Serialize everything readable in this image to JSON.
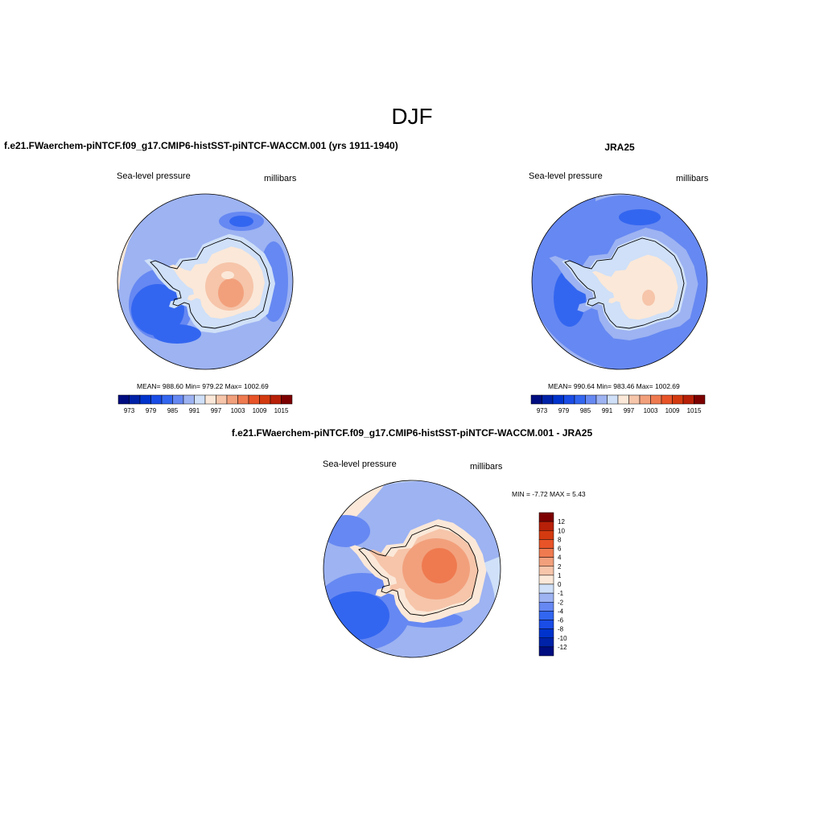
{
  "figure": {
    "title": "DJF",
    "panel_left_title": "f.e21.FWaerchem-piNTCF.f09_g17.CMIP6-histSST-piNTCF-WACCM.001 (yrs 1911-1940)",
    "panel_right_title": "JRA25",
    "panel_bottom_title": "f.e21.FWaerchem-piNTCF.f09_g17.CMIP6-histSST-piNTCF-WACCM.001 - JRA25"
  },
  "panels": [
    {
      "id": "model",
      "variable_label": "Sea-level pressure",
      "units_label": "millibars",
      "stats_text": "MEAN= 988.60  Min= 979.22  Max= 1002.69",
      "mean": 988.6,
      "min": 979.22,
      "max": 1002.69
    },
    {
      "id": "obs",
      "variable_label": "Sea-level pressure",
      "units_label": "millibars",
      "stats_text": "MEAN= 990.64  Min= 983.46  Max= 1002.69",
      "mean": 990.64,
      "min": 983.46,
      "max": 1002.69
    },
    {
      "id": "diff",
      "variable_label": "Sea-level pressure",
      "units_label": "millibars",
      "stats_text": "MIN =  -7.72 MAX =   5.43",
      "min": -7.72,
      "max": 5.43
    }
  ],
  "colorbars": {
    "field": {
      "orientation": "horizontal",
      "tick_labels": [
        "973",
        "979",
        "985",
        "991",
        "997",
        "1003",
        "1009",
        "1015"
      ],
      "colors": [
        "#000d80",
        "#0022a8",
        "#0033cc",
        "#1a4ce6",
        "#3366f0",
        "#6688f2",
        "#9db3f2",
        "#cfe0f8",
        "#fbe8d8",
        "#f6c5aa",
        "#f2a07c",
        "#ef7a50",
        "#e85428",
        "#d43a10",
        "#b82008",
        "#7d0000"
      ]
    },
    "diff": {
      "orientation": "vertical",
      "tick_labels": [
        "12",
        "10",
        "8",
        "6",
        "4",
        "2",
        "1",
        "0",
        "-1",
        "-2",
        "-4",
        "-6",
        "-8",
        "-10",
        "-12"
      ],
      "colors": [
        "#7d0000",
        "#b82008",
        "#d43a10",
        "#e85428",
        "#ef7a50",
        "#f2a07c",
        "#f6c5aa",
        "#fbe8d8",
        "#cfe0f8",
        "#9db3f2",
        "#6688f2",
        "#3366f0",
        "#1a4ce6",
        "#0033cc",
        "#0022a8",
        "#000d80"
      ]
    }
  }
}
